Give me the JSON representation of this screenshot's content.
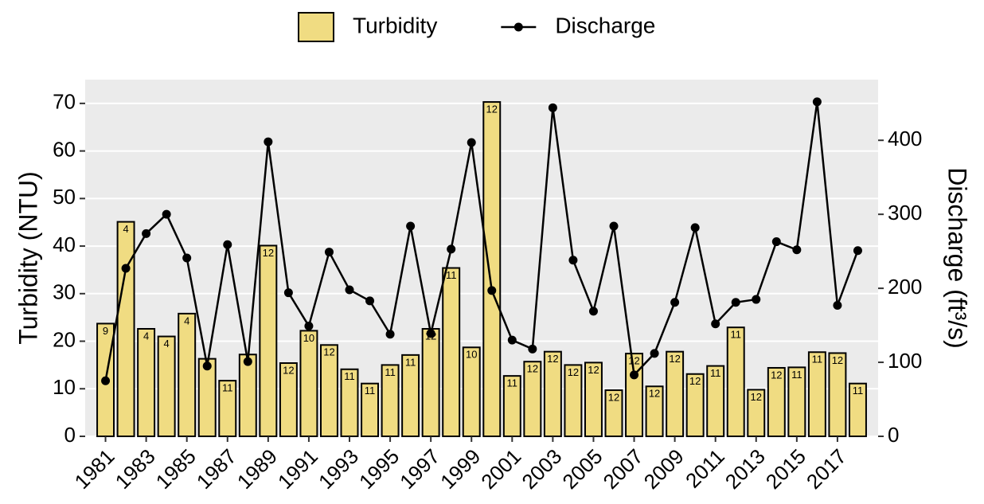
{
  "chart_data": {
    "type": "bar",
    "categories": [
      "1981",
      null,
      "1983",
      null,
      "1985",
      null,
      "1987",
      null,
      "1989",
      null,
      "1991",
      null,
      "1993",
      null,
      "1995",
      null,
      "1997",
      null,
      "1999",
      null,
      "2001",
      null,
      "2003",
      null,
      "2005",
      null,
      "2007",
      null,
      "2009",
      null,
      "2011",
      null,
      "2013",
      null,
      "2015",
      null,
      "2017",
      null
    ],
    "series": [
      {
        "name": "Turbidity",
        "type": "bar",
        "color": "#f0dc82",
        "values": [
          23.7,
          45.1,
          22.6,
          21.0,
          25.8,
          16.3,
          11.7,
          17.2,
          40.1,
          15.4,
          22.2,
          19.2,
          14.1,
          11.1,
          15.0,
          17.1,
          22.6,
          35.4,
          18.7,
          70.3,
          12.7,
          15.7,
          17.8,
          15.0,
          15.5,
          9.7,
          17.4,
          10.5,
          17.8,
          13.1,
          14.8,
          22.9,
          9.8,
          14.4,
          14.5,
          17.7,
          17.5,
          11.1
        ],
        "sample_counts": [
          9,
          4,
          4,
          4,
          4,
          null,
          11,
          null,
          12,
          12,
          10,
          12,
          11,
          11,
          11,
          11,
          12,
          11,
          10,
          12,
          11,
          12,
          12,
          12,
          12,
          12,
          12,
          12,
          12,
          12,
          11,
          11,
          12,
          12,
          11,
          11,
          12,
          11
        ]
      },
      {
        "name": "Discharge",
        "type": "line",
        "color": "#000000",
        "axis": "y2",
        "values": [
          75,
          227,
          274,
          300,
          241,
          95,
          259,
          101,
          398,
          194,
          149,
          249,
          198,
          183,
          138,
          284,
          139,
          253,
          397,
          197,
          130,
          118,
          444,
          238,
          169,
          284,
          83,
          112,
          181,
          282,
          152,
          181,
          185,
          263,
          252,
          452,
          177,
          251
        ]
      }
    ],
    "ylabel": "Turbidity (NTU)",
    "y2label": "Discharge (ft³/s)",
    "ylim": [
      0,
      75
    ],
    "yticks": [
      0,
      10,
      20,
      30,
      40,
      50,
      60,
      70
    ],
    "y2lim": [
      0,
      482
    ],
    "y2ticks": [
      0,
      100,
      200,
      300,
      400
    ],
    "grid": true,
    "legend": "top"
  }
}
